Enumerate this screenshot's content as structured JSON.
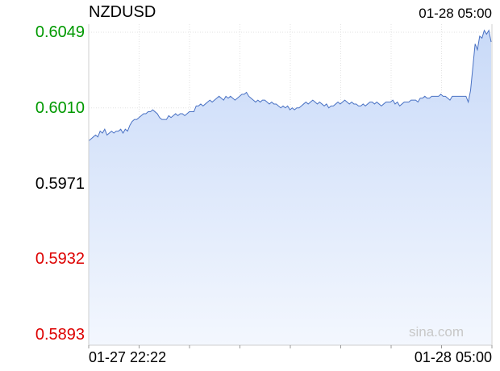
{
  "header": {
    "symbol": "NZDUSD",
    "timestamp": "01-28 05:00"
  },
  "watermark": "sina.com",
  "colors": {
    "up": "#009900",
    "down": "#dd0000",
    "neutral": "#000000",
    "line": "#4a72c4",
    "fill_top": "#c9daf8",
    "fill_bottom": "#f3f7fe"
  },
  "chart_data": {
    "type": "area",
    "title": "NZDUSD",
    "xlabel": "",
    "ylabel": "",
    "y_ticks": [
      {
        "value": 0.6049,
        "label": "0.6049",
        "color": "up"
      },
      {
        "value": 0.601,
        "label": "0.6010",
        "color": "up"
      },
      {
        "value": 0.5971,
        "label": "0.5971",
        "color": "neutral"
      },
      {
        "value": 0.5932,
        "label": "0.5932",
        "color": "down"
      },
      {
        "value": 0.5893,
        "label": "0.5893",
        "color": "down"
      }
    ],
    "ylim": [
      0.5887,
      0.6055
    ],
    "reference_value": 0.5971,
    "x_labels": [
      "01-27 22:22",
      "01-28 05:00"
    ],
    "grid": true,
    "values": [
      0.5993,
      0.5994,
      0.5995,
      0.5996,
      0.5995,
      0.5998,
      0.5997,
      0.5999,
      0.5996,
      0.5997,
      0.5998,
      0.5997,
      0.5998,
      0.5998,
      0.5999,
      0.5997,
      0.5999,
      0.5998,
      0.6001,
      0.6003,
      0.6004,
      0.6004,
      0.6005,
      0.6006,
      0.6007,
      0.6007,
      0.6008,
      0.6008,
      0.6009,
      0.6008,
      0.6007,
      0.6005,
      0.6004,
      0.6004,
      0.6004,
      0.6006,
      0.6005,
      0.6006,
      0.6007,
      0.6006,
      0.6007,
      0.6007,
      0.6006,
      0.6007,
      0.6008,
      0.6008,
      0.6008,
      0.6011,
      0.6011,
      0.6012,
      0.6011,
      0.6012,
      0.6013,
      0.6014,
      0.6013,
      0.6014,
      0.6015,
      0.6016,
      0.6015,
      0.6014,
      0.6016,
      0.6015,
      0.6016,
      0.6015,
      0.6014,
      0.6015,
      0.6016,
      0.6017,
      0.6017,
      0.6018,
      0.6016,
      0.6015,
      0.6014,
      0.6013,
      0.6014,
      0.6013,
      0.6014,
      0.6014,
      0.6013,
      0.6012,
      0.6013,
      0.6012,
      0.6012,
      0.6011,
      0.601,
      0.6011,
      0.601,
      0.6011,
      0.6009,
      0.601,
      0.6009,
      0.601,
      0.601,
      0.6011,
      0.6012,
      0.6013,
      0.6012,
      0.6013,
      0.6014,
      0.6013,
      0.6012,
      0.6013,
      0.6012,
      0.6011,
      0.6012,
      0.601,
      0.6011,
      0.6011,
      0.6012,
      0.6013,
      0.6012,
      0.6013,
      0.6014,
      0.6013,
      0.6012,
      0.6013,
      0.6012,
      0.6012,
      0.6011,
      0.6011,
      0.6012,
      0.6011,
      0.6012,
      0.6013,
      0.6013,
      0.6012,
      0.6013,
      0.6012,
      0.6011,
      0.6012,
      0.6013,
      0.6013,
      0.6013,
      0.6014,
      0.6012,
      0.6013,
      0.6011,
      0.6012,
      0.6013,
      0.6013,
      0.6013,
      0.6014,
      0.6014,
      0.6014,
      0.6013,
      0.6015,
      0.6015,
      0.6016,
      0.6015,
      0.6015,
      0.6016,
      0.6016,
      0.6016,
      0.6016,
      0.6017,
      0.6016,
      0.6016,
      0.6015,
      0.6014,
      0.6016,
      0.6016,
      0.6016,
      0.6016,
      0.6016,
      0.6016,
      0.6016,
      0.6013,
      0.6019,
      0.6031,
      0.6043,
      0.604,
      0.6047,
      0.6046,
      0.605,
      0.6048,
      0.605,
      0.6044
    ]
  }
}
